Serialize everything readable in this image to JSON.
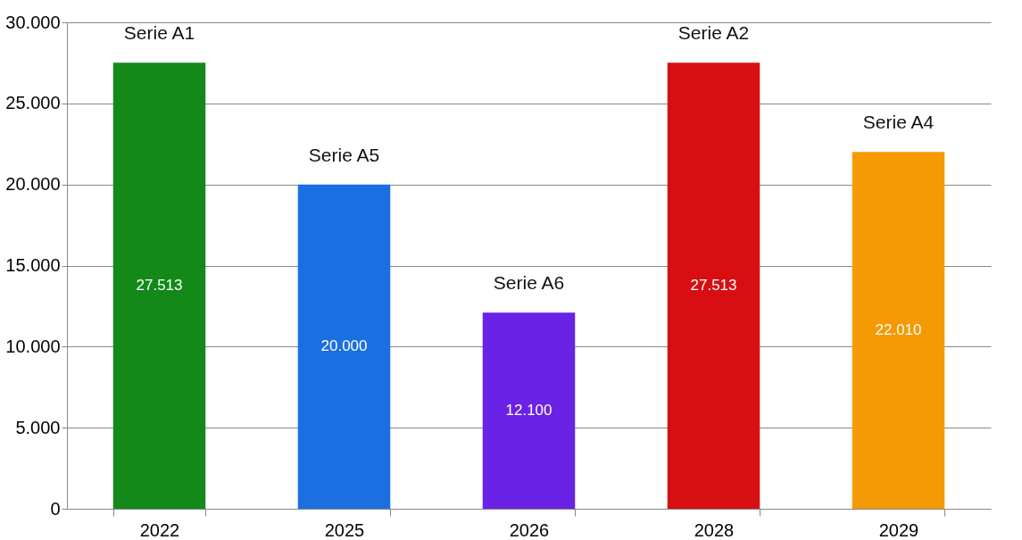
{
  "chart_data": {
    "type": "bar",
    "categories": [
      "2022",
      "2025",
      "2026",
      "2028",
      "2029"
    ],
    "series": [
      {
        "name": "Serie A1",
        "color": "#14891a",
        "values": [
          27513,
          null,
          null,
          null,
          null
        ],
        "value_labels": [
          "27.513",
          null,
          null,
          null,
          null
        ]
      },
      {
        "name": "Serie A5",
        "color": "#1c6fe0",
        "values": [
          null,
          20000,
          null,
          null,
          null
        ],
        "value_labels": [
          null,
          "20.000",
          null,
          null,
          null
        ]
      },
      {
        "name": "Serie A6",
        "color": "#6a22e6",
        "values": [
          null,
          null,
          12100,
          null,
          null
        ],
        "value_labels": [
          null,
          null,
          "12.100",
          null,
          null
        ]
      },
      {
        "name": "Serie A2",
        "color": "#d80f12",
        "values": [
          null,
          null,
          null,
          27513,
          null
        ],
        "value_labels": [
          null,
          null,
          null,
          "27.513",
          null
        ]
      },
      {
        "name": "Serie A4",
        "color": "#f59a05",
        "values": [
          null,
          null,
          null,
          null,
          22010
        ],
        "value_labels": [
          null,
          null,
          null,
          null,
          "22.010"
        ]
      }
    ],
    "ylim": [
      0,
      30000
    ],
    "yticks": [
      0,
      {
        "value": 5000,
        "label": "5.000"
      },
      {
        "value": 10000,
        "label": "10.000"
      },
      {
        "value": 15000,
        "label": "15.000"
      },
      {
        "value": 20000,
        "label": "20.000"
      },
      {
        "value": 25000,
        "label": "25.000"
      },
      {
        "value": 30000,
        "label": "30.000"
      }
    ],
    "grid": "y",
    "legend": false
  }
}
